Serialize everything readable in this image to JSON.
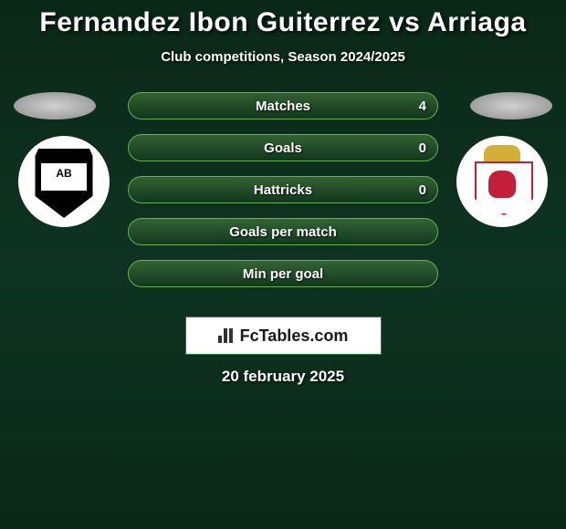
{
  "header": {
    "title": "Fernandez Ibon Guiterrez vs Arriaga",
    "subtitle": "Club competitions, Season 2024/2025"
  },
  "stats": [
    {
      "label": "Matches",
      "right_value": "4"
    },
    {
      "label": "Goals",
      "right_value": "0"
    },
    {
      "label": "Hattricks",
      "right_value": "0"
    },
    {
      "label": "Goals per match",
      "right_value": ""
    },
    {
      "label": "Min per goal",
      "right_value": ""
    }
  ],
  "footer": {
    "logo_text": "FcTables.com",
    "date": "20 february 2025"
  },
  "styling": {
    "background_gradient_colors": [
      "#0a2818",
      "#0f3322",
      "#0a2818"
    ],
    "title_color": "#ffffff",
    "title_fontsize": 30,
    "title_fontweight": 900,
    "subtitle_color": "#ffffff",
    "subtitle_fontsize": 15,
    "stat_row_border_color": "#6ab04c",
    "stat_row_bg_gradient": [
      "rgba(106,176,76,0.4)",
      "rgba(20,60,30,0.6)"
    ],
    "stat_row_height": 30,
    "stat_row_border_radius": 15,
    "stat_row_gap": 16,
    "stat_label_color": "#ffffff",
    "stat_label_fontsize": 15,
    "ellipse_colors": [
      "#d0d0d0",
      "#a0a0a0",
      "#808080"
    ],
    "ellipse_width": 90,
    "ellipse_height": 30,
    "badge_diameter": 100,
    "badge_bg": "#ffffff",
    "badge_left_primary": "#000000",
    "badge_left_secondary": "#ffffff",
    "badge_right_crown": "#d4af37",
    "badge_right_border": "#c41e3a",
    "badge_right_lion": "#c41e3a",
    "logo_box_bg": "#ffffff",
    "logo_box_border": "#2a7a3f",
    "logo_box_width": 215,
    "logo_box_height": 42,
    "logo_text_color": "#1a1a1a",
    "logo_text_fontsize": 18,
    "date_color": "#ffffff",
    "date_fontsize": 17
  }
}
